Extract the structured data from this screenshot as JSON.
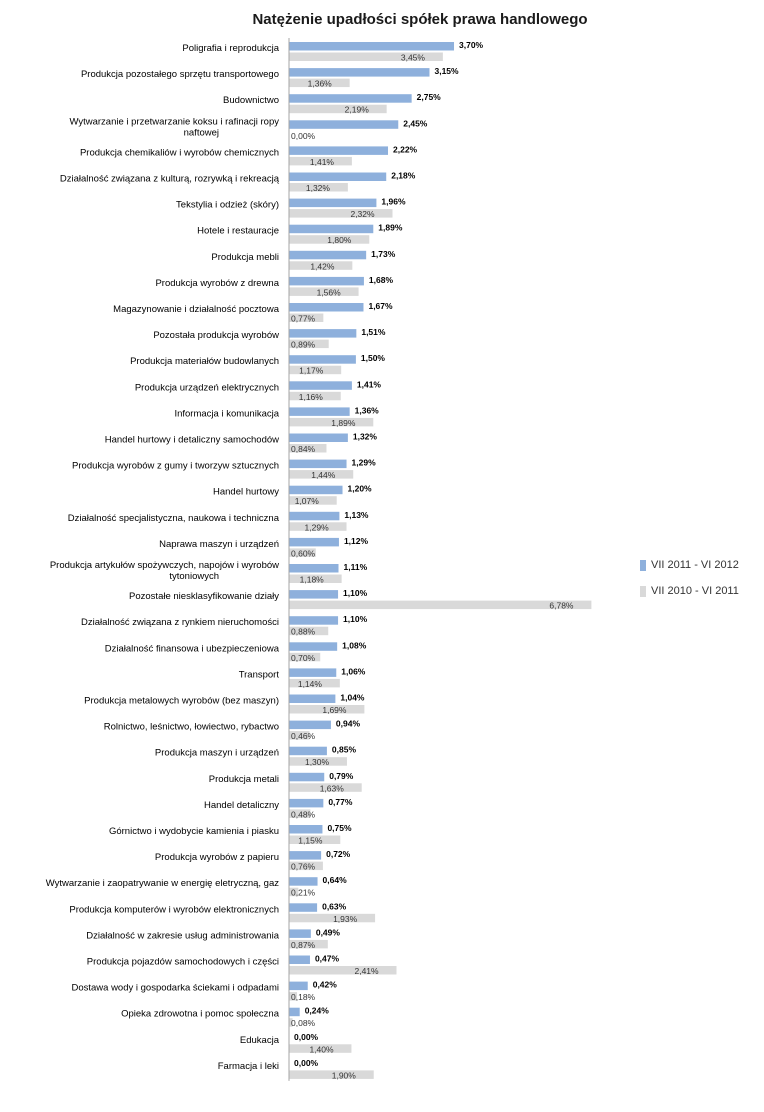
{
  "chart_data": {
    "type": "bar",
    "orientation": "horizontal",
    "title": "Natężenie upadłości spółek prawa handlowego",
    "legend_position": "right",
    "categories": [
      "Poligrafia i reprodukcja",
      "Produkcja pozostałego sprzętu transportowego",
      "Budownictwo",
      "Wytwarzanie i przetwarzanie koksu i rafinacji ropy naftowej",
      "Produkcja chemikaliów i wyrobów chemicznych",
      "Działalność związana z kulturą, rozrywką i rekreacją",
      "Tekstylia i odzież (skóry)",
      "Hotele i restauracje",
      "Produkcja mebli",
      "Produkcja wyrobów z drewna",
      "Magazynowanie i działalność pocztowa",
      "Pozostała produkcja wyrobów",
      "Produkcja materiałów budowlanych",
      "Produkcja urządzeń elektrycznych",
      "Informacja i komunikacja",
      "Handel hurtowy i detaliczny samochodów",
      "Produkcja wyrobów z gumy i tworzyw sztucznych",
      "Handel hurtowy",
      "Działalność specjalistyczna, naukowa i techniczna",
      "Naprawa maszyn i urządzeń",
      "Produkcja artykułów spożywczych, napojów i wyrobów tytoniowych",
      "Pozostałe niesklasyfikowanie działy",
      "Działalność związana z rynkiem nieruchomości",
      "Działalność finansowa i ubezpieczeniowa",
      "Transport",
      "Produkcja metalowych wyrobów (bez maszyn)",
      "Rolnictwo, leśnictwo, łowiectwo, rybactwo",
      "Produkcja maszyn i urządzeń",
      "Produkcja metali",
      "Handel detaliczny",
      "Górnictwo i wydobycie kamienia i piasku",
      "Produkcja wyrobów z papieru",
      "Wytwarzanie i zaopatrywanie w energię eletryczną, gaz",
      "Produkcja komputerów i wyrobów elektronicznych",
      "Działalność w zakresie usług administrowania",
      "Produkcja pojazdów samochodowych i części",
      "Dostawa wody i gospodarka ściekami i odpadami",
      "Opieka zdrowotna i pomoc społeczna",
      "Edukacja",
      "Farmacja i leki"
    ],
    "series": [
      {
        "name": "VII 2011 - VI 2012",
        "color": "#8eb0dc",
        "values": [
          3.7,
          3.15,
          2.75,
          2.45,
          2.22,
          2.18,
          1.96,
          1.89,
          1.73,
          1.68,
          1.67,
          1.51,
          1.5,
          1.41,
          1.36,
          1.32,
          1.29,
          1.2,
          1.13,
          1.12,
          1.11,
          1.1,
          1.1,
          1.08,
          1.06,
          1.04,
          0.94,
          0.85,
          0.79,
          0.77,
          0.75,
          0.72,
          0.64,
          0.63,
          0.49,
          0.47,
          0.42,
          0.24,
          0.0,
          0.0
        ],
        "labels": [
          "3,70%",
          "3,15%",
          "2,75%",
          "2,45%",
          "2,22%",
          "2,18%",
          "1,96%",
          "1,89%",
          "1,73%",
          "1,68%",
          "1,67%",
          "1,51%",
          "1,50%",
          "1,41%",
          "1,36%",
          "1,32%",
          "1,29%",
          "1,20%",
          "1,13%",
          "1,12%",
          "1,11%",
          "1,10%",
          "1,10%",
          "1,08%",
          "1,06%",
          "1,04%",
          "0,94%",
          "0,85%",
          "0,79%",
          "0,77%",
          "0,75%",
          "0,72%",
          "0,64%",
          "0,63%",
          "0,49%",
          "0,47%",
          "0,42%",
          "0,24%",
          "0,00%",
          "0,00%"
        ]
      },
      {
        "name": "VII 2010 - VI 2011",
        "color": "#d9d9d9",
        "values": [
          3.45,
          1.36,
          2.19,
          0.0,
          1.41,
          1.32,
          2.32,
          1.8,
          1.42,
          1.56,
          0.77,
          0.89,
          1.17,
          1.16,
          1.89,
          0.84,
          1.44,
          1.07,
          1.29,
          0.6,
          1.18,
          6.78,
          0.88,
          0.7,
          1.14,
          1.69,
          0.46,
          1.3,
          1.63,
          0.48,
          1.15,
          0.76,
          0.21,
          1.93,
          0.87,
          2.41,
          0.18,
          0.08,
          1.4,
          1.9
        ],
        "labels": [
          "3,45%",
          "1,36%",
          "2,19%",
          "0,00%",
          "1,41%",
          "1,32%",
          "2,32%",
          "1,80%",
          "1,42%",
          "1,56%",
          "0,77%",
          "0,89%",
          "1,17%",
          "1,16%",
          "1,89%",
          "0,84%",
          "1,44%",
          "1,07%",
          "1,29%",
          "0,60%",
          "1,18%",
          "6,78%",
          "0,88%",
          "0,70%",
          "1,14%",
          "1,69%",
          "0,46%",
          "1,30%",
          "1,63%",
          "0,48%",
          "1,15%",
          "0,76%",
          "0,21%",
          "1,93%",
          "0,87%",
          "2,41%",
          "0,18%",
          "0,08%",
          "1,40%",
          "1,90%"
        ]
      }
    ]
  }
}
